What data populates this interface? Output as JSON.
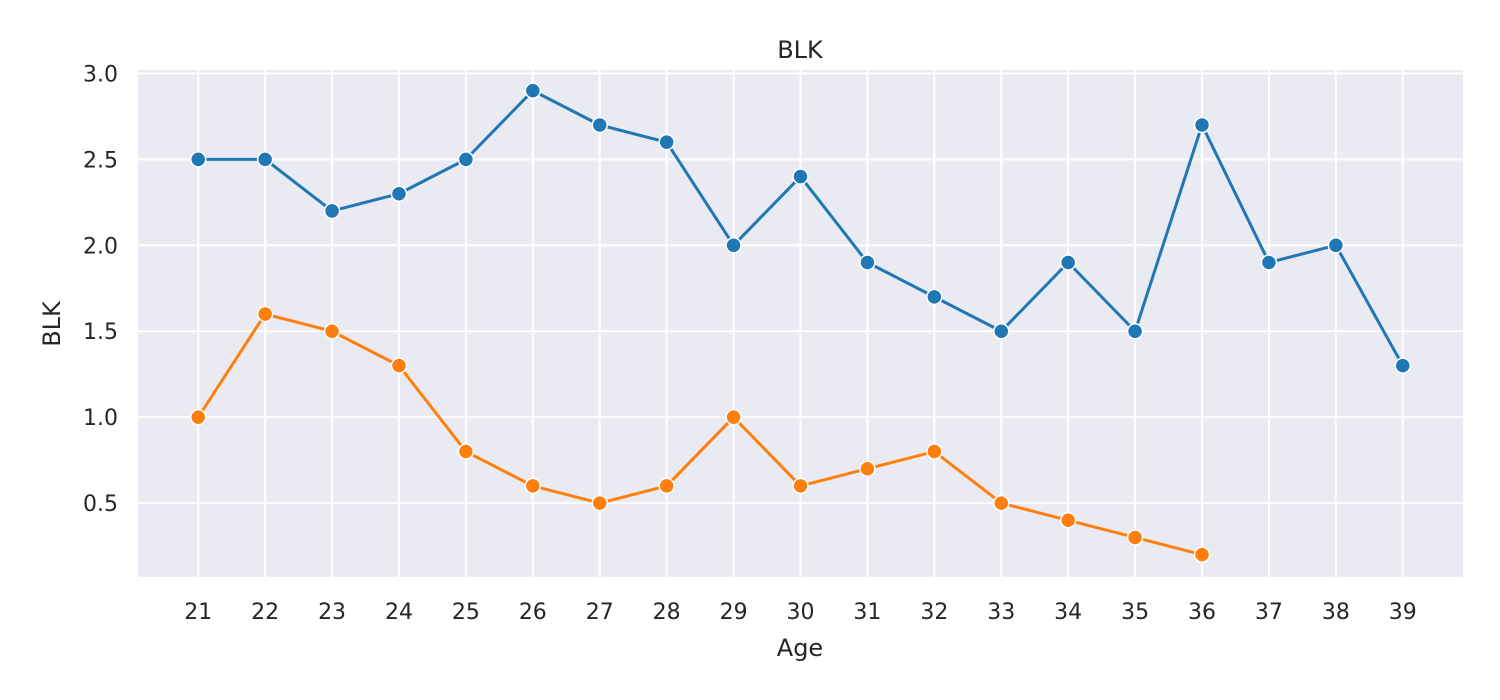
{
  "chart_data": {
    "type": "line",
    "title": "BLK",
    "xlabel": "Age",
    "ylabel": "BLK",
    "x": [
      21,
      22,
      23,
      24,
      25,
      26,
      27,
      28,
      29,
      30,
      31,
      32,
      33,
      34,
      35,
      36,
      37,
      38,
      39
    ],
    "xlim": [
      20.1,
      39.9
    ],
    "ylim": [
      0.07,
      3.02
    ],
    "yticks": [
      0.5,
      1.0,
      1.5,
      2.0,
      2.5,
      3.0
    ],
    "ytick_labels": [
      "0.5",
      "1.0",
      "1.5",
      "2.0",
      "2.5",
      "3.0"
    ],
    "xtick_labels": [
      "21",
      "22",
      "23",
      "24",
      "25",
      "26",
      "27",
      "28",
      "29",
      "30",
      "31",
      "32",
      "33",
      "34",
      "35",
      "36",
      "37",
      "38",
      "39"
    ],
    "grid": true,
    "legend": "none",
    "series": [
      {
        "color": "#1f77b4",
        "x": [
          21,
          22,
          23,
          24,
          25,
          26,
          27,
          28,
          29,
          30,
          31,
          32,
          33,
          34,
          35,
          36,
          37,
          38,
          39
        ],
        "values": [
          2.5,
          2.5,
          2.2,
          2.3,
          2.5,
          2.9,
          2.7,
          2.6,
          2.0,
          2.4,
          1.9,
          1.7,
          1.5,
          1.9,
          1.5,
          2.7,
          1.9,
          2.0,
          1.3
        ]
      },
      {
        "color": "#ff7f0e",
        "x": [
          21,
          22,
          23,
          24,
          25,
          26,
          27,
          28,
          29,
          30,
          31,
          32,
          33,
          34,
          35,
          36
        ],
        "values": [
          1.0,
          1.6,
          1.5,
          1.3,
          0.8,
          0.6,
          0.5,
          0.6,
          1.0,
          0.6,
          0.7,
          0.8,
          0.5,
          0.4,
          0.3,
          0.2
        ]
      }
    ]
  }
}
